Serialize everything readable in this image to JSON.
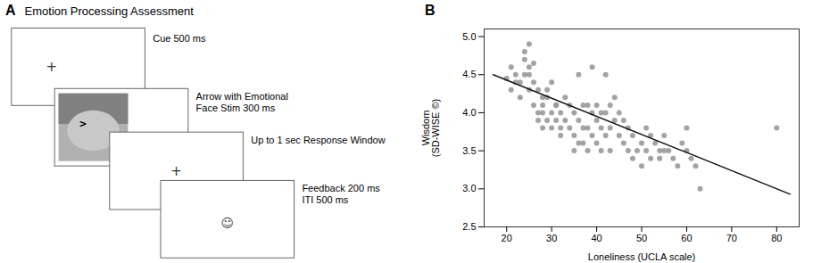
{
  "chart_data": [
    {
      "type": "diagram",
      "title": "A",
      "subtitle": "Emotion Processing Assessment",
      "annotations": [
        {
          "text": "Cue 500 ms",
          "symbol": "+"
        },
        {
          "text": "Arrow with Emotional\nFace Stim 300 ms",
          "symbol": ">"
        },
        {
          "text": "Up to 1 sec Response Window",
          "symbol": "+"
        },
        {
          "text": "Feedback 200 ms\nITI 500 ms",
          "symbol": "☺"
        }
      ],
      "color": "#666666"
    },
    {
      "type": "scatter",
      "title": "B",
      "xlabel": "Loneliness (UCLA scale)",
      "ylabel": "Wisdom\n(SD-WISE ©)",
      "xlim": [
        15,
        85
      ],
      "ylim": [
        2.5,
        5.1
      ],
      "xticks": [
        20,
        30,
        40,
        50,
        60,
        70,
        80
      ],
      "yticks": [
        2.5,
        {
          "value": 3.0,
          "label": "3.0"
        },
        3.5,
        {
          "value": 4.0,
          "label": "4.0"
        },
        4.5,
        {
          "value": 5.0,
          "label": "5.0"
        }
      ],
      "series": [
        {
          "type": "scatter",
          "color": "#999999",
          "x": [
            20,
            21,
            21,
            22,
            22,
            23,
            23,
            24,
            24,
            24,
            25,
            25,
            25,
            25,
            26,
            26,
            26,
            27,
            27,
            27,
            28,
            28,
            28,
            28,
            29,
            29,
            29,
            30,
            30,
            30,
            31,
            31,
            31,
            32,
            32,
            32,
            33,
            33,
            34,
            34,
            35,
            35,
            35,
            36,
            36,
            36,
            37,
            37,
            37,
            38,
            38,
            38,
            39,
            39,
            39,
            40,
            40,
            40,
            41,
            41,
            41,
            42,
            42,
            42,
            43,
            43,
            43,
            44,
            44,
            45,
            45,
            46,
            46,
            47,
            47,
            48,
            48,
            49,
            50,
            50,
            51,
            51,
            52,
            52,
            53,
            54,
            54,
            55,
            55,
            56,
            57,
            58,
            59,
            60,
            60,
            61,
            62,
            63,
            80
          ],
          "values": [
            4.45,
            4.3,
            4.6,
            4.5,
            4.4,
            4.4,
            4.2,
            4.5,
            4.7,
            4.8,
            4.9,
            4.6,
            4.3,
            4.5,
            4.65,
            4.4,
            4.1,
            4.3,
            4.0,
            3.9,
            4.2,
            3.8,
            4.1,
            4.0,
            4.3,
            4.2,
            3.9,
            4.4,
            4.0,
            3.8,
            4.1,
            3.9,
            4.1,
            3.7,
            3.8,
            4.0,
            4.2,
            3.9,
            4.1,
            3.8,
            3.5,
            3.7,
            4.0,
            3.6,
            3.9,
            4.5,
            3.8,
            4.1,
            3.6,
            3.5,
            3.8,
            4.1,
            3.7,
            4.0,
            4.6,
            3.6,
            3.9,
            4.1,
            3.5,
            3.8,
            4.0,
            3.7,
            4.5,
            4.0,
            3.5,
            3.8,
            4.1,
            3.9,
            4.2,
            3.7,
            4.0,
            3.6,
            3.9,
            3.5,
            3.8,
            3.4,
            3.7,
            3.5,
            3.3,
            3.6,
            3.5,
            3.8,
            3.4,
            3.7,
            3.6,
            3.5,
            3.4,
            3.7,
            3.5,
            3.5,
            3.4,
            3.3,
            3.6,
            3.8,
            3.5,
            3.4,
            3.3,
            3.0,
            3.8
          ]
        },
        {
          "type": "line",
          "color": "#111111",
          "x": [
            17,
            83
          ],
          "values": [
            4.5,
            2.93
          ]
        }
      ]
    }
  ]
}
